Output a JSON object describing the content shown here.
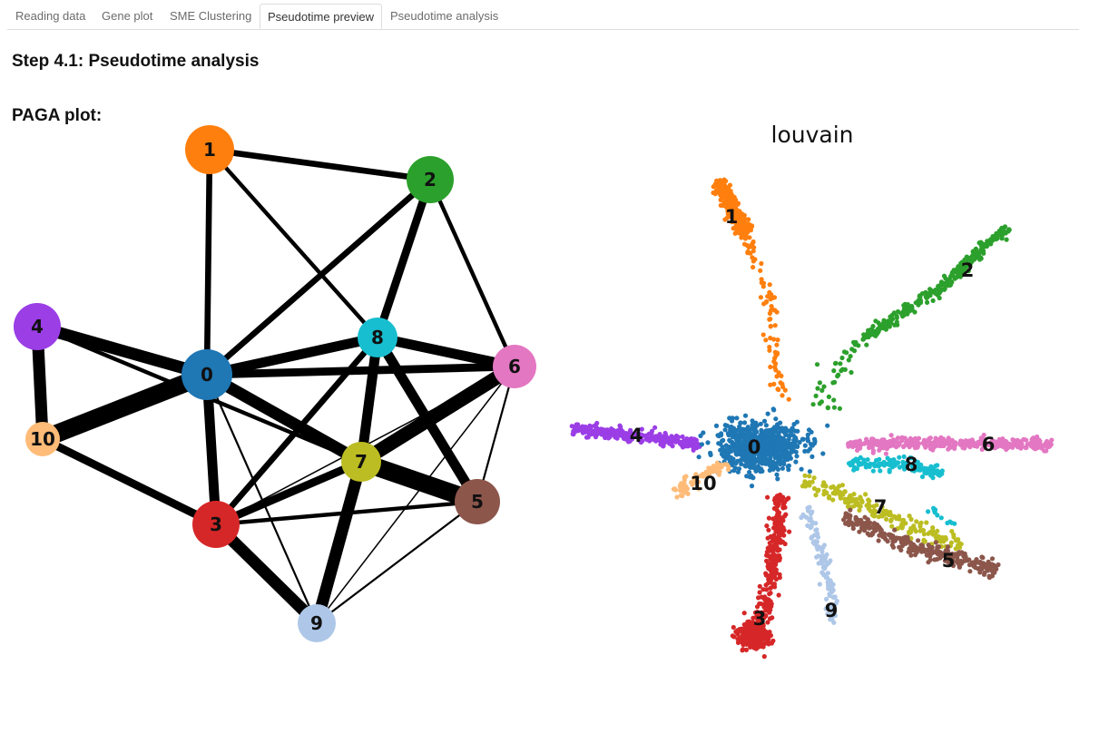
{
  "tabs": [
    {
      "label": "Reading data",
      "active": false
    },
    {
      "label": "Gene plot",
      "active": false
    },
    {
      "label": "SME Clustering",
      "active": false
    },
    {
      "label": "Pseudotime preview",
      "active": true
    },
    {
      "label": "Pseudotime analysis",
      "active": false
    }
  ],
  "step_title": "Step 4.1: Pseudotime analysis",
  "paga_label": "PAGA plot:",
  "umap_title": "louvain",
  "clusters": [
    {
      "id": "0",
      "color": "#1f77b4"
    },
    {
      "id": "1",
      "color": "#ff7f0e"
    },
    {
      "id": "2",
      "color": "#2ca02c"
    },
    {
      "id": "3",
      "color": "#d62728"
    },
    {
      "id": "4",
      "color": "#9b3ee6"
    },
    {
      "id": "5",
      "color": "#8c564b"
    },
    {
      "id": "6",
      "color": "#e377c2"
    },
    {
      "id": "7",
      "color": "#bcbd22"
    },
    {
      "id": "8",
      "color": "#17becf"
    },
    {
      "id": "9",
      "color": "#aec7e8"
    },
    {
      "id": "10",
      "color": "#ffbb78"
    }
  ],
  "paga_edges": [
    {
      "from": "0",
      "to": "10",
      "weight": 9
    },
    {
      "from": "0",
      "to": "4",
      "weight": 6
    },
    {
      "from": "4",
      "to": "10",
      "weight": 6
    },
    {
      "from": "7",
      "to": "5",
      "weight": 9
    },
    {
      "from": "6",
      "to": "7",
      "weight": 7
    },
    {
      "from": "3",
      "to": "9",
      "weight": 6
    },
    {
      "from": "0",
      "to": "7",
      "weight": 6
    },
    {
      "from": "7",
      "to": "9",
      "weight": 6
    },
    {
      "from": "8",
      "to": "5",
      "weight": 5
    },
    {
      "from": "0",
      "to": "3",
      "weight": 5
    },
    {
      "from": "8",
      "to": "6",
      "weight": 5
    },
    {
      "from": "0",
      "to": "8",
      "weight": 5
    },
    {
      "from": "8",
      "to": "7",
      "weight": 5
    },
    {
      "from": "2",
      "to": "8",
      "weight": 4
    },
    {
      "from": "10",
      "to": "3",
      "weight": 4
    },
    {
      "from": "0",
      "to": "6",
      "weight": 4
    },
    {
      "from": "3",
      "to": "7",
      "weight": 4
    },
    {
      "from": "0",
      "to": "2",
      "weight": 3
    },
    {
      "from": "3",
      "to": "8",
      "weight": 3
    },
    {
      "from": "0",
      "to": "1",
      "weight": 3
    },
    {
      "from": "1",
      "to": "2",
      "weight": 3
    },
    {
      "from": "2",
      "to": "6",
      "weight": 2
    },
    {
      "from": "1",
      "to": "8",
      "weight": 2
    },
    {
      "from": "4",
      "to": "7",
      "weight": 2
    },
    {
      "from": "3",
      "to": "5",
      "weight": 2
    },
    {
      "from": "0",
      "to": "9",
      "weight": 1
    },
    {
      "from": "9",
      "to": "5",
      "weight": 1
    },
    {
      "from": "9",
      "to": "6",
      "weight": 0.7
    },
    {
      "from": "3",
      "to": "6",
      "weight": 0.7
    },
    {
      "from": "5",
      "to": "6",
      "weight": 1
    }
  ]
}
